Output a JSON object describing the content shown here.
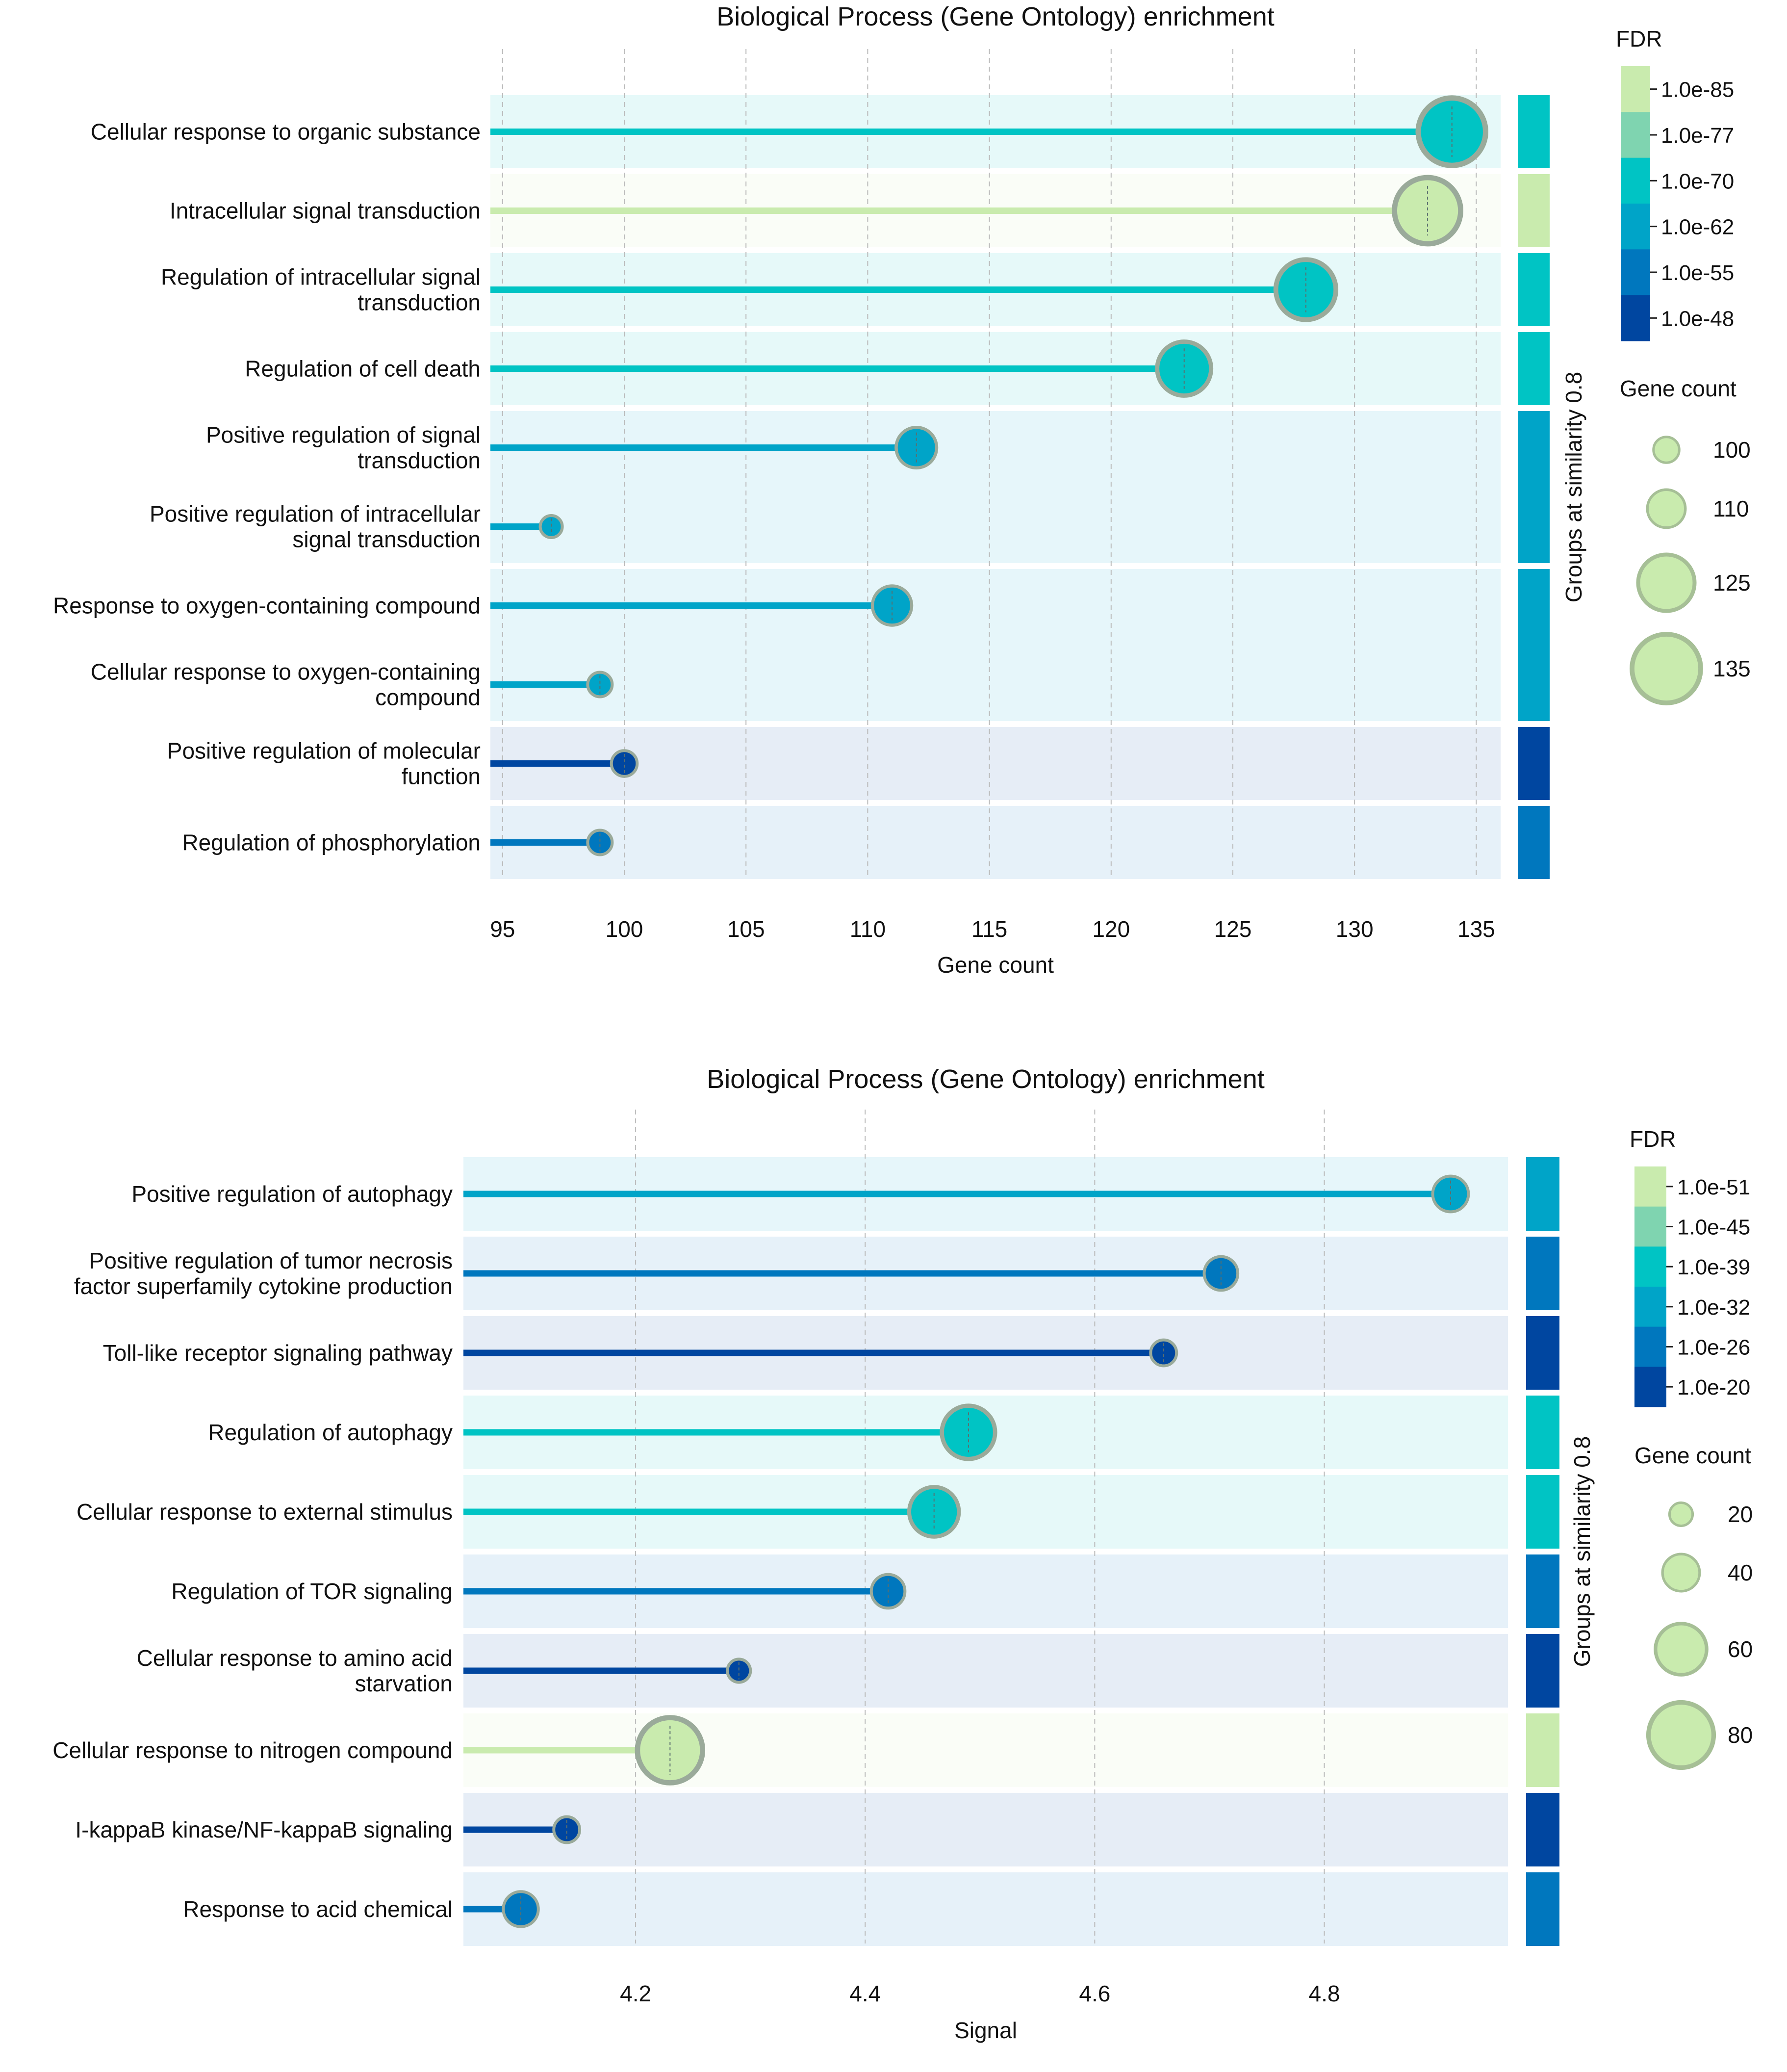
{
  "colors": {
    "fdr_scale": [
      "#c9ebae",
      "#7fd4b0",
      "#00c4c4",
      "#00a4c8",
      "#0077be",
      "#0046a0"
    ],
    "bubble_edge": "#9aaa9a",
    "grid": "#bbbbbb",
    "legend_bubble_fill": "#c9ebae",
    "legend_bubble_edge": "#a6bf96"
  },
  "chart_data": [
    {
      "type": "scatter",
      "subtype": "lollipop",
      "title": "Biological Process (Gene Ontology) enrichment",
      "xlabel": "Gene count",
      "xlim": [
        94.5,
        136
      ],
      "xticks": [
        95,
        100,
        105,
        110,
        115,
        120,
        125,
        130,
        135
      ],
      "xtick_labels": [
        "95",
        "100",
        "105",
        "110",
        "115",
        "120",
        "125",
        "130",
        "135"
      ],
      "group_axis_label": "Groups at similarity 0.8",
      "fdr_title": "FDR",
      "fdr_labels": [
        "1.0e-85",
        "1.0e-77",
        "1.0e-70",
        "1.0e-62",
        "1.0e-55",
        "1.0e-48"
      ],
      "size_title": "Gene count",
      "size_legend": [
        {
          "value": 100,
          "label": "100"
        },
        {
          "value": 110,
          "label": "110"
        },
        {
          "value": 125,
          "label": "125"
        },
        {
          "value": 135,
          "label": "135"
        }
      ],
      "size_range": [
        95,
        135
      ],
      "groups": [
        {
          "fdr_level": 2,
          "rows": [
            0
          ]
        },
        {
          "fdr_level": 0,
          "rows": [
            1
          ]
        },
        {
          "fdr_level": 2,
          "rows": [
            2
          ]
        },
        {
          "fdr_level": 2,
          "rows": [
            3
          ]
        },
        {
          "fdr_level": 3,
          "rows": [
            4,
            5
          ]
        },
        {
          "fdr_level": 3,
          "rows": [
            6,
            7
          ]
        },
        {
          "fdr_level": 5,
          "rows": [
            8
          ]
        },
        {
          "fdr_level": 4,
          "rows": [
            9
          ]
        }
      ],
      "terms": [
        {
          "label": [
            "Cellular response to organic substance"
          ],
          "value": 134,
          "gene_count": 134,
          "fdr_level": 2
        },
        {
          "label": [
            "Intracellular signal transduction"
          ],
          "value": 133,
          "gene_count": 133,
          "fdr_level": 0
        },
        {
          "label": [
            "Regulation of intracellular signal",
            "transduction"
          ],
          "value": 128,
          "gene_count": 128,
          "fdr_level": 2
        },
        {
          "label": [
            "Regulation of cell death"
          ],
          "value": 123,
          "gene_count": 123,
          "fdr_level": 2
        },
        {
          "label": [
            "Positive regulation of signal",
            "transduction"
          ],
          "value": 112,
          "gene_count": 112,
          "fdr_level": 3
        },
        {
          "label": [
            "Positive regulation of intracellular",
            "signal transduction"
          ],
          "value": 97,
          "gene_count": 97,
          "fdr_level": 3
        },
        {
          "label": [
            "Response to oxygen-containing compound"
          ],
          "value": 111,
          "gene_count": 111,
          "fdr_level": 3
        },
        {
          "label": [
            "Cellular response to oxygen-containing",
            "compound"
          ],
          "value": 99,
          "gene_count": 99,
          "fdr_level": 3
        },
        {
          "label": [
            "Positive regulation of molecular",
            "function"
          ],
          "value": 100,
          "gene_count": 100,
          "fdr_level": 5
        },
        {
          "label": [
            "Regulation of phosphorylation"
          ],
          "value": 99,
          "gene_count": 99,
          "fdr_level": 4
        }
      ]
    },
    {
      "type": "scatter",
      "subtype": "lollipop",
      "title": "Biological Process (Gene Ontology) enrichment",
      "xlabel": "Signal",
      "xlim": [
        4.05,
        4.96
      ],
      "xticks": [
        4.2,
        4.4,
        4.6,
        4.8
      ],
      "xtick_labels": [
        "4.2",
        "4.4",
        "4.6",
        "4.8"
      ],
      "group_axis_label": "Groups at similarity 0.8",
      "fdr_title": "FDR",
      "fdr_labels": [
        "1.0e-51",
        "1.0e-45",
        "1.0e-39",
        "1.0e-32",
        "1.0e-26",
        "1.0e-20"
      ],
      "size_title": "Gene count",
      "size_legend": [
        {
          "value": 20,
          "label": "20"
        },
        {
          "value": 40,
          "label": "40"
        },
        {
          "value": 60,
          "label": "60"
        },
        {
          "value": 80,
          "label": "80"
        }
      ],
      "size_range": [
        15,
        85
      ],
      "groups": [
        {
          "fdr_level": 3,
          "rows": [
            0
          ]
        },
        {
          "fdr_level": 4,
          "rows": [
            1
          ]
        },
        {
          "fdr_level": 5,
          "rows": [
            2
          ]
        },
        {
          "fdr_level": 2,
          "rows": [
            3
          ]
        },
        {
          "fdr_level": 2,
          "rows": [
            4
          ]
        },
        {
          "fdr_level": 4,
          "rows": [
            5
          ]
        },
        {
          "fdr_level": 5,
          "rows": [
            6
          ]
        },
        {
          "fdr_level": 0,
          "rows": [
            7
          ]
        },
        {
          "fdr_level": 5,
          "rows": [
            8
          ]
        },
        {
          "fdr_level": 4,
          "rows": [
            9
          ]
        }
      ],
      "terms": [
        {
          "label": [
            "Positive regulation of autophagy"
          ],
          "value": 4.91,
          "gene_count": 38,
          "fdr_level": 3
        },
        {
          "label": [
            "Positive regulation of tumor necrosis",
            "factor superfamily cytokine production"
          ],
          "value": 4.71,
          "gene_count": 35,
          "fdr_level": 4
        },
        {
          "label": [
            "Toll-like receptor signaling pathway"
          ],
          "value": 4.66,
          "gene_count": 24,
          "fdr_level": 5
        },
        {
          "label": [
            "Regulation of autophagy"
          ],
          "value": 4.49,
          "gene_count": 63,
          "fdr_level": 2
        },
        {
          "label": [
            "Cellular response to external stimulus"
          ],
          "value": 4.46,
          "gene_count": 58,
          "fdr_level": 2
        },
        {
          "label": [
            "Regulation of TOR signaling"
          ],
          "value": 4.42,
          "gene_count": 35,
          "fdr_level": 4
        },
        {
          "label": [
            "Cellular response to amino acid",
            "starvation"
          ],
          "value": 4.29,
          "gene_count": 20,
          "fdr_level": 5
        },
        {
          "label": [
            "Cellular response to nitrogen compound"
          ],
          "value": 4.23,
          "gene_count": 80,
          "fdr_level": 0
        },
        {
          "label": [
            "I-kappaB kinase/NF-kappaB signaling"
          ],
          "value": 4.14,
          "gene_count": 24,
          "fdr_level": 5
        },
        {
          "label": [
            "Response to acid chemical"
          ],
          "value": 4.1,
          "gene_count": 37,
          "fdr_level": 4
        }
      ]
    }
  ]
}
